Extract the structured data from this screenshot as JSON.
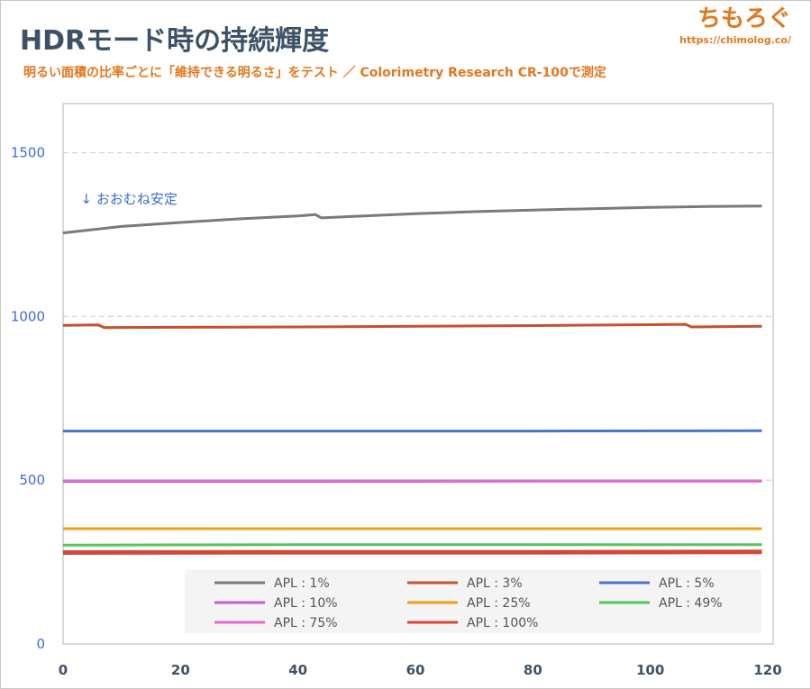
{
  "header": {
    "title": "HDRモード時の持続輝度",
    "subtitle": "明るい面積の比率ごとに「維持できる明るさ」をテスト ／ Colorimetry Research CR-100で測定"
  },
  "brand": {
    "name": "ちもろぐ",
    "url": "https://chimolog.co/"
  },
  "colors": {
    "title": "#3d5266",
    "accent": "#e2781e",
    "tick_y": "#3b6ad8"
  },
  "chart_data": {
    "type": "line",
    "xlim": [
      0,
      120
    ],
    "ylim": [
      0,
      1650
    ],
    "x_ticks": [
      0,
      20,
      40,
      60,
      80,
      100,
      120
    ],
    "y_ticks": [
      0,
      500,
      1000,
      1500
    ],
    "grid": "horizontal dashed",
    "legend_position": "bottom",
    "annotation": {
      "text": "↓ おおむね安定",
      "x": 3,
      "y": 1345
    },
    "series": [
      {
        "name": "APL : 1%",
        "color": "#7a7a7a",
        "x": [
          0,
          5,
          10,
          20,
          30,
          40,
          43,
          44,
          50,
          60,
          70,
          80,
          90,
          100,
          110,
          119
        ],
        "y": [
          1255,
          1265,
          1275,
          1287,
          1298,
          1307,
          1311,
          1301,
          1306,
          1314,
          1320,
          1325,
          1329,
          1333,
          1336,
          1337
        ]
      },
      {
        "name": "APL : 3%",
        "color": "#c8502a",
        "x": [
          0,
          6,
          7,
          20,
          40,
          60,
          80,
          100,
          106,
          107,
          119
        ],
        "y": [
          973,
          974,
          966,
          967,
          968,
          970,
          972,
          975,
          976,
          968,
          970
        ]
      },
      {
        "name": "APL : 5%",
        "color": "#4a72d6",
        "x": [
          0,
          40,
          80,
          119
        ],
        "y": [
          650,
          650,
          650,
          651
        ]
      },
      {
        "name": "APL : 10%",
        "color": "#c45ed0",
        "x": [
          0,
          40,
          80,
          119
        ],
        "y": [
          496,
          496,
          497,
          497
        ]
      },
      {
        "name": "APL : 25%",
        "color": "#f0a018",
        "x": [
          0,
          40,
          80,
          119
        ],
        "y": [
          352,
          352,
          352,
          352
        ]
      },
      {
        "name": "APL : 49%",
        "color": "#52c65a",
        "x": [
          0,
          40,
          80,
          119
        ],
        "y": [
          302,
          303,
          303,
          303
        ]
      },
      {
        "name": "APL : 75%",
        "color": "#e06ec8",
        "x": [
          0,
          40,
          80,
          119
        ],
        "y": [
          498,
          498,
          498,
          498
        ]
      },
      {
        "name": "APL : 100%",
        "color": "#d0483a",
        "x": [
          0,
          40,
          80,
          119
        ],
        "y": [
          279,
          280,
          280,
          281
        ]
      }
    ]
  }
}
